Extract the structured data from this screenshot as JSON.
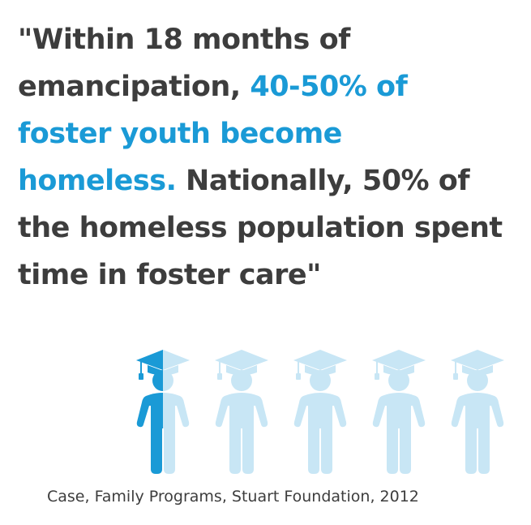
{
  "quote": {
    "line1": "\"Within 18 months of",
    "line2_a": "emancipation, ",
    "line2_b": "40-50% of",
    "line3": "foster youth become",
    "line4_a": "homeless.",
    "line4_b": " Nationally, 50% of",
    "line5": "the homeless population spent",
    "line6": "time in foster care\""
  },
  "figures": {
    "count": 5,
    "filled_fraction_of_first": 0.5,
    "icon": "graduate-person-icon"
  },
  "source": "Case, Family Programs, Stuart Foundation, 2012",
  "colors": {
    "text": "#3d3d3d",
    "accent": "#1a9ad6",
    "light": "#c8e6f5"
  }
}
